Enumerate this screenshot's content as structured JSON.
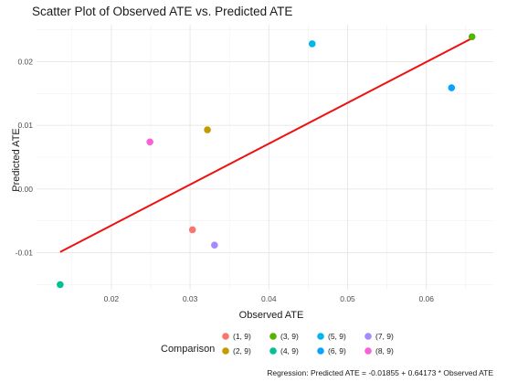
{
  "chart_data": {
    "type": "scatter",
    "title": "Scatter Plot of Observed ATE vs. Predicted ATE",
    "xlabel": "Observed ATE",
    "ylabel": "Predicted ATE",
    "xlim": [
      0.0105,
      0.0685
    ],
    "ylim": [
      -0.0158,
      0.0258
    ],
    "x_ticks": [
      0.02,
      0.03,
      0.04,
      0.05,
      0.06
    ],
    "x_tick_labels": [
      "0.02",
      "0.03",
      "0.04",
      "0.05",
      "0.06"
    ],
    "y_ticks": [
      -0.01,
      0.0,
      0.01,
      0.02
    ],
    "y_tick_labels": [
      "-0.01",
      "0.00",
      "0.01",
      "0.02"
    ],
    "grid": true,
    "legend_title": "Comparison",
    "legend_position": "bottom",
    "points": [
      {
        "label": "(1, 9)",
        "x": 0.0303,
        "y": -0.0064,
        "color": "#F8766D"
      },
      {
        "label": "(2, 9)",
        "x": 0.0322,
        "y": 0.0093,
        "color": "#C49A00"
      },
      {
        "label": "(3, 9)",
        "x": 0.0658,
        "y": 0.0239,
        "color": "#53B400"
      },
      {
        "label": "(4, 9)",
        "x": 0.0135,
        "y": -0.015,
        "color": "#00C094"
      },
      {
        "label": "(5, 9)",
        "x": 0.0455,
        "y": 0.0228,
        "color": "#00B6EB"
      },
      {
        "label": "(6, 9)",
        "x": 0.0632,
        "y": 0.0159,
        "color": "#06A4FF"
      },
      {
        "label": "(7, 9)",
        "x": 0.0331,
        "y": -0.0088,
        "color": "#A58AFF"
      },
      {
        "label": "(8, 9)",
        "x": 0.0249,
        "y": 0.0074,
        "color": "#FB61D7"
      }
    ],
    "regression": {
      "intercept": -0.01855,
      "slope": 0.64173,
      "x_range": [
        0.0135,
        0.0658
      ],
      "color": "#EE1111"
    },
    "caption": "Regression: Predicted ATE = -0.01855 + 0.64173 * Observed ATE"
  }
}
